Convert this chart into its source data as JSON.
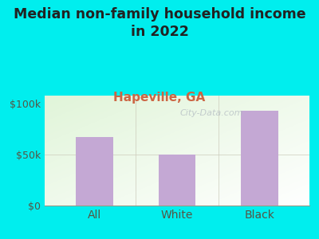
{
  "title": "Median non-family household income\nin 2022",
  "subtitle": "Hapeville, GA",
  "categories": [
    "All",
    "White",
    "Black"
  ],
  "values": [
    67000,
    50000,
    93000
  ],
  "bar_color": "#c4a8d4",
  "outer_bg": "#00eeee",
  "yticks": [
    0,
    50000,
    100000
  ],
  "ytick_labels": [
    "$0",
    "$50k",
    "$100k"
  ],
  "ylim": [
    0,
    108000
  ],
  "title_fontsize": 12.5,
  "subtitle_fontsize": 11,
  "subtitle_color": "#cc6644",
  "tick_color": "#555544",
  "xlabel_color": "#555544",
  "watermark": "City-Data.com",
  "watermark_fontsize": 8
}
